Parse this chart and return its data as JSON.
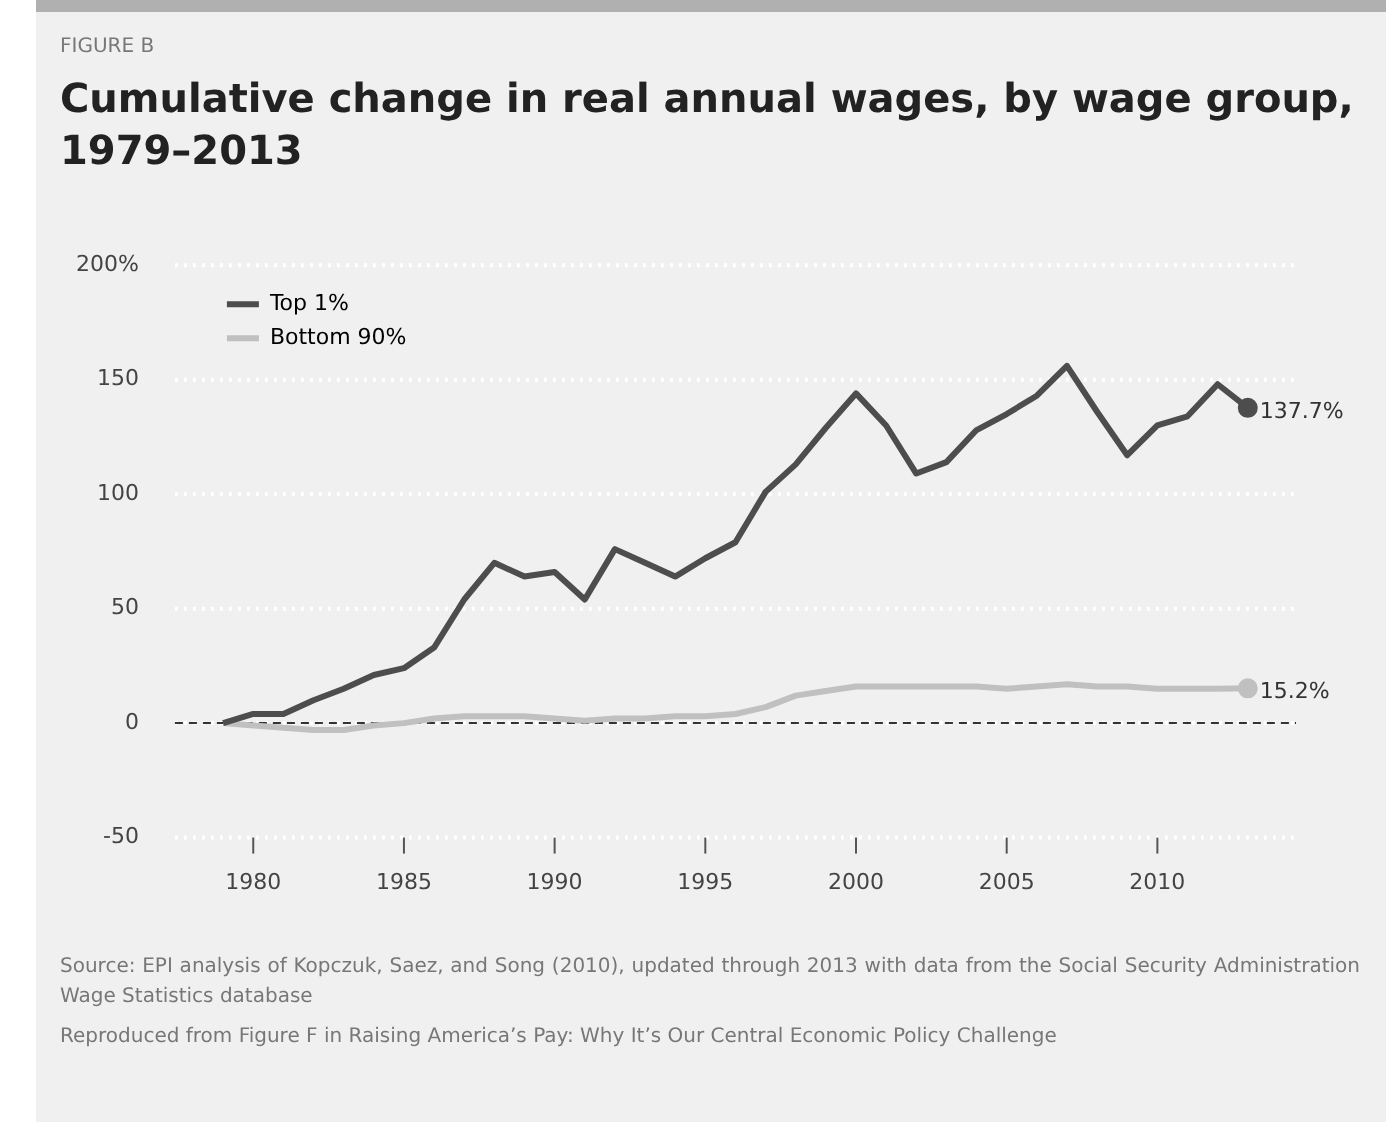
{
  "chart_data": {
    "type": "line",
    "title": "Cumulative change in real annual wages, by wage group, 1979–2013",
    "x": [
      1979,
      1980,
      1981,
      1982,
      1983,
      1984,
      1985,
      1986,
      1987,
      1988,
      1989,
      1990,
      1991,
      1992,
      1993,
      1994,
      1995,
      1996,
      1997,
      1998,
      1999,
      2000,
      2001,
      2002,
      2003,
      2004,
      2005,
      2006,
      2007,
      2008,
      2009,
      2010,
      2011,
      2012,
      2013
    ],
    "series": [
      {
        "name": "Top 1%",
        "color": "#4d4d4d",
        "values": [
          0,
          4,
          4,
          10,
          15,
          21,
          24,
          33,
          54,
          70,
          64,
          66,
          54,
          76,
          70,
          64,
          72,
          79,
          101,
          113,
          129,
          144,
          130,
          109,
          114,
          128,
          135,
          143,
          156,
          136,
          117,
          130,
          134,
          148,
          137.7
        ],
        "value_labels": [
          null,
          null,
          null,
          null,
          null,
          null,
          null,
          null,
          null,
          null,
          null,
          null,
          null,
          null,
          null,
          null,
          null,
          null,
          null,
          null,
          null,
          null,
          null,
          null,
          null,
          null,
          null,
          null,
          null,
          null,
          null,
          null,
          null,
          null,
          "137.7%"
        ]
      },
      {
        "name": "Bottom 90%",
        "color": "#c0c0c0",
        "values": [
          0,
          -1,
          -2,
          -3,
          -3,
          -1,
          0,
          2,
          3,
          3,
          3,
          2,
          1,
          2,
          2,
          3,
          3,
          4,
          7,
          12,
          14,
          16,
          16,
          16,
          16,
          16,
          15,
          16,
          17,
          16,
          16,
          15,
          15,
          15,
          15.2
        ],
        "value_labels": [
          null,
          null,
          null,
          null,
          null,
          null,
          null,
          null,
          null,
          null,
          null,
          null,
          null,
          null,
          null,
          null,
          null,
          null,
          null,
          null,
          null,
          null,
          null,
          null,
          null,
          null,
          null,
          null,
          null,
          null,
          null,
          null,
          null,
          null,
          "15.2%"
        ]
      }
    ],
    "xlim": [
      1977.4,
      2014.6
    ],
    "xticks": [
      1980,
      1985,
      1990,
      1995,
      2000,
      2005,
      2010
    ],
    "ylim": [
      -50,
      200
    ],
    "yticks": [
      -50,
      0,
      50,
      100,
      150,
      {
        "value": 200,
        "label": "200%"
      }
    ],
    "grid": "y",
    "legend": "top left",
    "marker": "none",
    "line_style": "solid",
    "ref_lines": [
      {
        "axis": "y",
        "value": 0,
        "label": null,
        "color": "#333333",
        "line_style": "dashed"
      }
    ],
    "annotations": [
      "FIGURE B",
      "Source: EPI analysis of Kopczuk, Saez, and Song (2010), updated through 2013 with data from the Social Security Administration Wage Statistics database",
      "Reproduced from Figure F in Raising America’s Pay: Why It’s Our Central Economic Policy Challenge"
    ]
  }
}
